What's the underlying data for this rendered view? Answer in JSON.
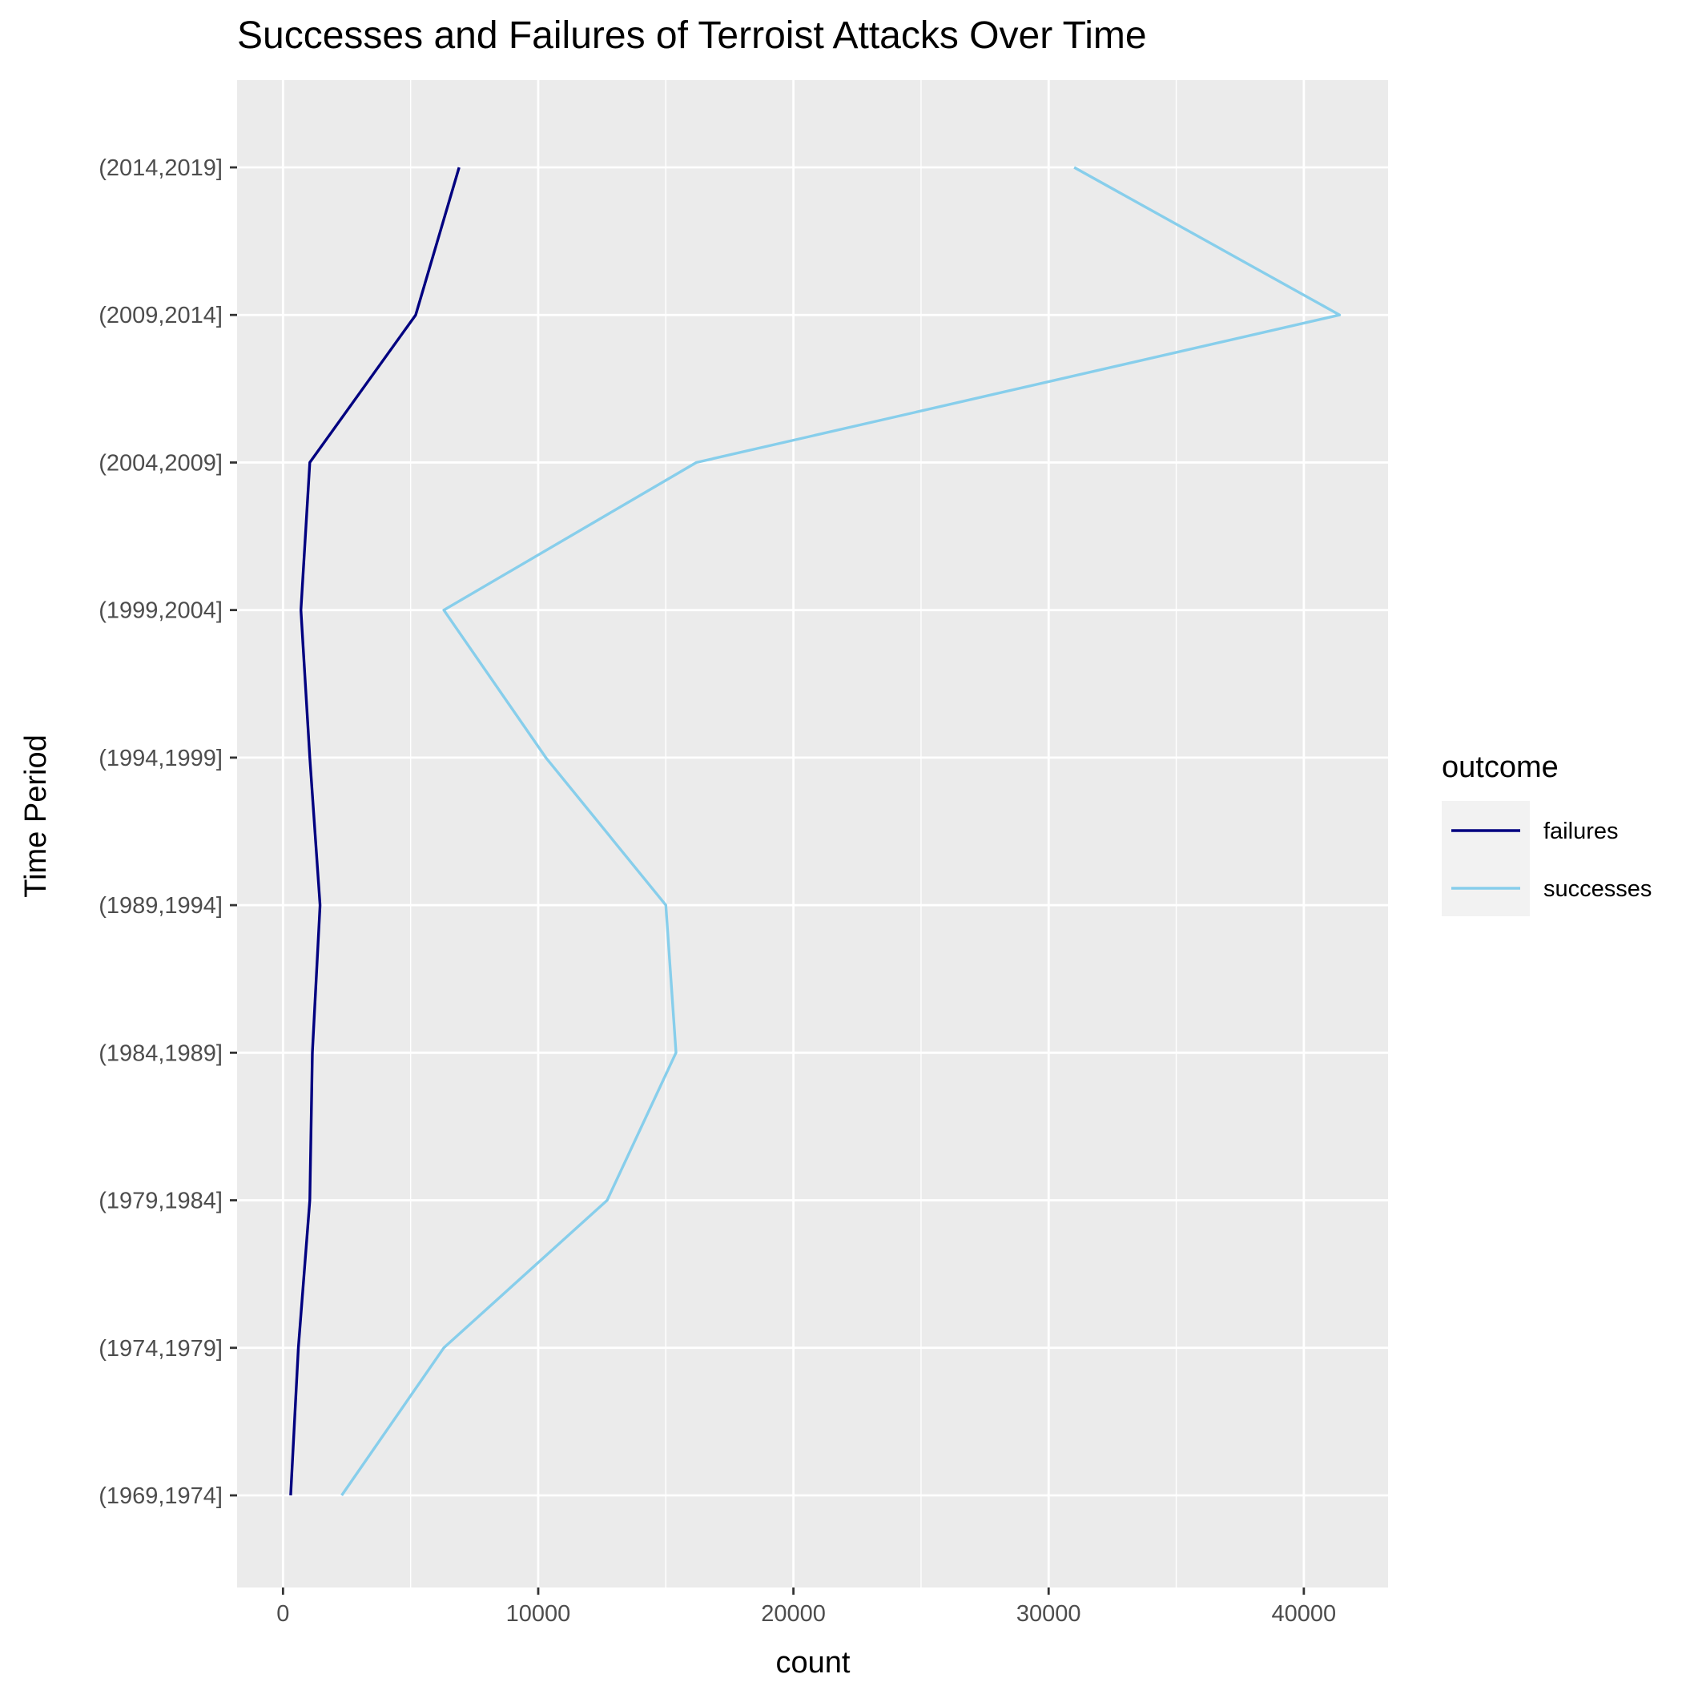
{
  "chart_data": {
    "type": "line",
    "title": "Successes and Failures of Terroist Attacks Over Time",
    "xlabel": "count",
    "ylabel": "Time Period",
    "xlim": [
      -1800,
      43300
    ],
    "x_ticks": [
      0,
      10000,
      20000,
      30000,
      40000
    ],
    "x_minor_ticks": [
      5000,
      15000,
      25000,
      35000
    ],
    "categories": [
      "(1969,1974]",
      "(1974,1979]",
      "(1979,1984]",
      "(1984,1989]",
      "(1989,1994]",
      "(1994,1999]",
      "(1999,2004]",
      "(2004,2009]",
      "(2009,2014]",
      "(2014,2019]"
    ],
    "series": [
      {
        "name": "failures",
        "color": "#000080",
        "values": [
          300,
          600,
          1050,
          1150,
          1450,
          1050,
          700,
          1050,
          5200,
          6900
        ]
      },
      {
        "name": "successes",
        "color": "#87ceeb",
        "values": [
          2300,
          6300,
          12700,
          15400,
          15000,
          10300,
          6300,
          16200,
          41400,
          31000
        ]
      }
    ],
    "legend": {
      "title": "outcome",
      "position": "right"
    },
    "grid": true,
    "panel_background": "#ebebeb"
  }
}
